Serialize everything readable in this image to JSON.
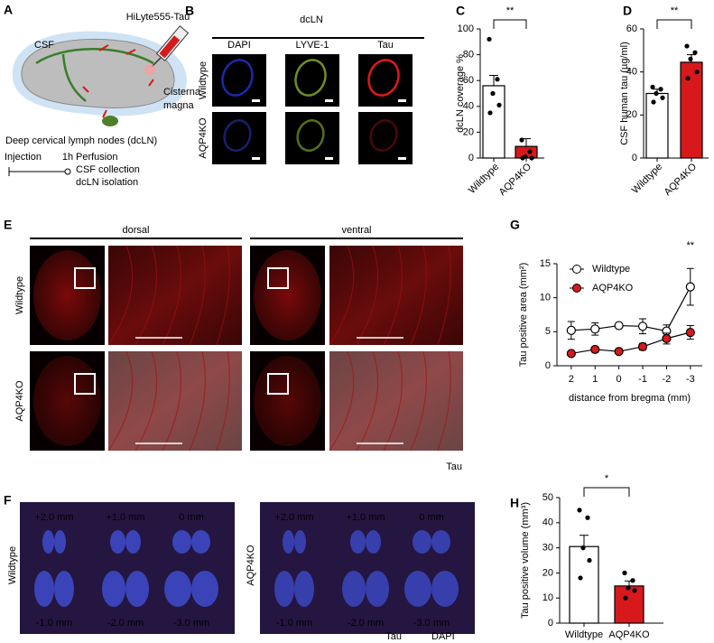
{
  "panel_a": {
    "label": "A",
    "tracer": "HiLyte555-Tau",
    "csf": "CSF",
    "injection_site": [
      "Cisterna",
      "magna"
    ],
    "lymph_nodes": "Deep cervical lymph nodes (dcLN)",
    "timeline": {
      "start": "Injection",
      "interval": "1h",
      "end": [
        "Perfusion",
        "CSF collection",
        "dcLN isolation"
      ]
    }
  },
  "panel_b": {
    "label": "B",
    "tissue": "dcLN",
    "channels": [
      "DAPI",
      "LYVE-1",
      "Tau"
    ],
    "rows": [
      "Wildtype",
      "AQP4KO"
    ]
  },
  "panel_e": {
    "label": "E",
    "views": [
      "dorsal",
      "ventral"
    ],
    "rows": [
      "Wildtype",
      "AQP4KO"
    ],
    "channel": "Tau"
  },
  "panel_f": {
    "label": "F",
    "groups": [
      "Wildtype",
      "AQP4KO"
    ],
    "sections": [
      "+2.0 mm",
      "+1.0 mm",
      "0 mm",
      "-1.0 mm",
      "-2.0 mm",
      "-3.0 mm"
    ],
    "channels": [
      "Tau",
      "DAPI"
    ]
  },
  "chart_data": [
    {
      "type": "bar",
      "panel": "C",
      "ylabel": "dcLN coverage %",
      "categories": [
        "Wildtype",
        "AQP4KO"
      ],
      "values": [
        56,
        9
      ],
      "errors": [
        8,
        6
      ],
      "colors": [
        "#ffffff",
        "#d7191c"
      ],
      "points": [
        [
          92,
          61,
          50,
          41,
          35
        ],
        [
          14,
          5,
          1,
          0,
          0
        ]
      ],
      "ylim": [
        0,
        100
      ],
      "yticks": [
        0,
        20,
        40,
        60,
        80,
        100
      ],
      "significance": "**"
    },
    {
      "type": "bar",
      "panel": "D",
      "ylabel": "CSF human tau (µg/ml)",
      "categories": [
        "Wildtype",
        "AQP4KO"
      ],
      "values": [
        30,
        44.5
      ],
      "errors": [
        2,
        3.5
      ],
      "colors": [
        "#ffffff",
        "#d7191c"
      ],
      "points": [
        [
          33,
          32,
          30,
          28,
          26
        ],
        [
          52,
          49,
          46,
          40,
          37
        ]
      ],
      "ylim": [
        0,
        60
      ],
      "yticks": [
        0,
        20,
        40,
        60
      ],
      "significance": "**"
    },
    {
      "type": "line",
      "panel": "G",
      "xlabel": "distance from bregma (mm)",
      "ylabel": "Tau positive area (mm²)",
      "x": [
        2,
        1,
        0,
        -1,
        -2,
        -3
      ],
      "series": [
        {
          "name": "Wildtype",
          "color": "#000000",
          "marker_fill": "#ffffff",
          "values": [
            5.2,
            5.4,
            5.9,
            5.8,
            5.1,
            11.6
          ],
          "errors": [
            1.3,
            0.9,
            0.3,
            1.1,
            0.9,
            2.7
          ]
        },
        {
          "name": "AQP4KO",
          "color": "#000000",
          "marker_fill": "#d7191c",
          "values": [
            1.8,
            2.4,
            2.1,
            2.8,
            4.0,
            4.9
          ],
          "errors": [
            0.3,
            0.4,
            0.3,
            0.5,
            0.8,
            1.0
          ]
        }
      ],
      "xlim": [
        2.6,
        -3.5
      ],
      "xticks": [
        2,
        1,
        0,
        -1,
        -2,
        -3
      ],
      "ylim": [
        0,
        15
      ],
      "yticks": [
        0,
        5,
        10,
        15
      ],
      "legend": "upper left",
      "annotations": [
        {
          "text": "**",
          "x": -3
        }
      ]
    },
    {
      "type": "bar",
      "panel": "H",
      "ylabel": "Tau positive volume (mm³)",
      "categories": [
        "Wildtype",
        "AQP4KO"
      ],
      "values": [
        30.5,
        14.8
      ],
      "errors": [
        4.5,
        2
      ],
      "colors": [
        "#ffffff",
        "#d7191c"
      ],
      "points": [
        [
          45,
          42,
          30,
          25,
          18
        ],
        [
          20,
          17,
          14,
          13,
          10
        ]
      ],
      "ylim": [
        0,
        50
      ],
      "yticks": [
        0,
        10,
        20,
        30,
        40,
        50
      ],
      "significance": "*"
    }
  ]
}
